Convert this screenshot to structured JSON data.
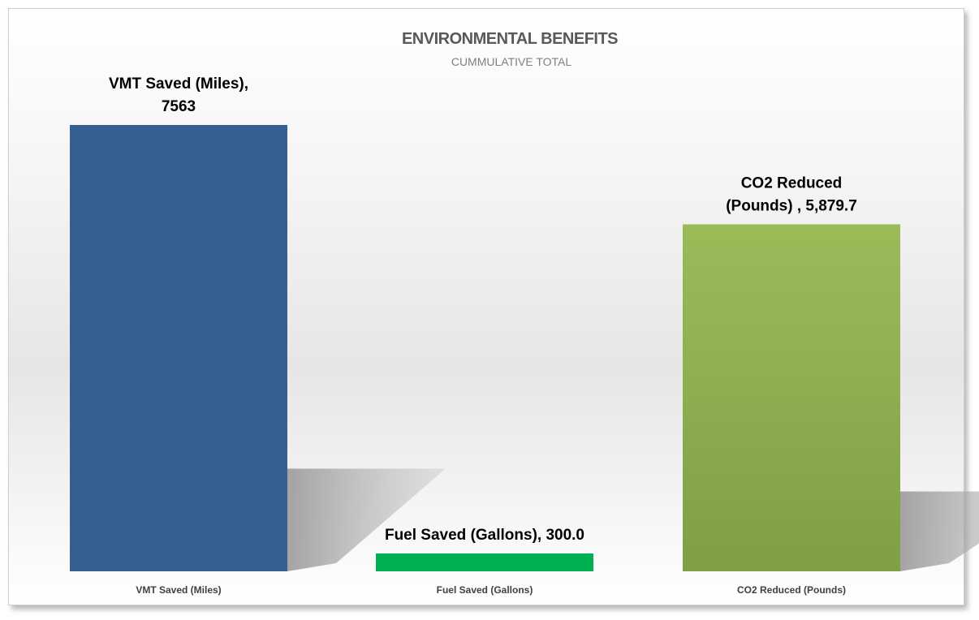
{
  "colors": {
    "vmt": "#365f91",
    "fuel": "#00b050",
    "co2_top": "#9bbb59",
    "co2_bottom": "#7f9f46"
  },
  "chart_data": {
    "type": "bar",
    "title": "ENVIRONMENTAL BENEFITS",
    "subtitle": "CUMMULATIVE TOTAL",
    "categories": [
      "VMT Saved (Miles)",
      "Fuel Saved (Gallons)",
      "CO2 Reduced (Pounds)"
    ],
    "values": [
      7563,
      300.0,
      5879.7
    ],
    "data_labels": [
      [
        "VMT Saved (Miles),",
        "7563"
      ],
      [
        "Fuel Saved (Gallons), 300.0"
      ],
      [
        "CO2 Reduced",
        "(Pounds) ,  5,879.7"
      ]
    ],
    "ylim": [
      0,
      7563
    ],
    "grid": false,
    "legend": "none"
  }
}
